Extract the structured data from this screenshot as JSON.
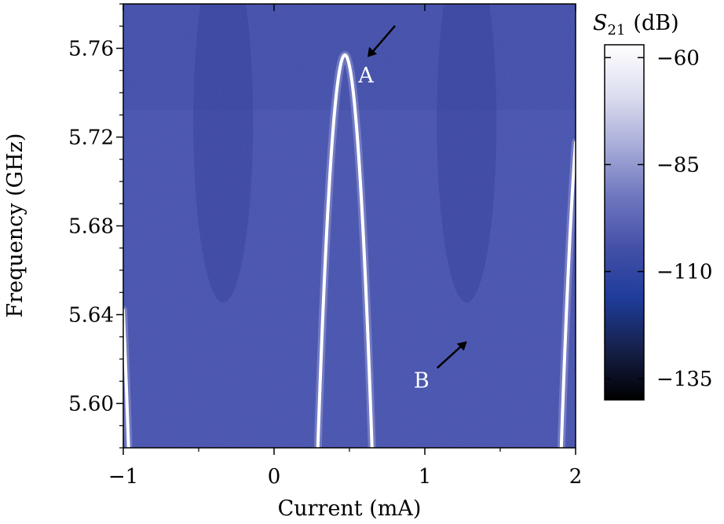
{
  "chart_data": {
    "type": "heatmap",
    "title": "",
    "xlabel": "Current (mA)",
    "ylabel": "Frequency (GHz)",
    "xlim": [
      -1,
      2
    ],
    "ylim": [
      5.58,
      5.78
    ],
    "x_ticks": [
      -1,
      0,
      1,
      2
    ],
    "x_tick_labels": [
      "−1",
      "0",
      "1",
      "2"
    ],
    "y_ticks": [
      5.6,
      5.64,
      5.68,
      5.72,
      5.76
    ],
    "y_tick_labels": [
      "5.60",
      "5.64",
      "5.68",
      "5.72",
      "5.76"
    ],
    "colorbar": {
      "label_main": "S",
      "label_sub": "21",
      "label_unit": "(dB)",
      "range": [
        -140,
        -57
      ],
      "ticks": [
        -60,
        -85,
        -110,
        -135
      ],
      "tick_labels": [
        "−60",
        "−85",
        "−110",
        "−135"
      ],
      "colors": [
        "#000000",
        "#16204a",
        "#1e3c9a",
        "#4450a8",
        "#6e76be",
        "#a8acd8",
        "#dcddef",
        "#ffffff"
      ]
    },
    "background_level_db": -95,
    "resonance": {
      "max_frequency_ghz": 5.757,
      "center_current_ma": 0.47,
      "period_ma": 1.615,
      "peak_level_db": -58
    },
    "annotations": [
      {
        "label": "A",
        "x": 0.62,
        "y": 5.756
      },
      {
        "label": "B",
        "x": 1.28,
        "y": 5.628
      }
    ],
    "grid": false
  }
}
